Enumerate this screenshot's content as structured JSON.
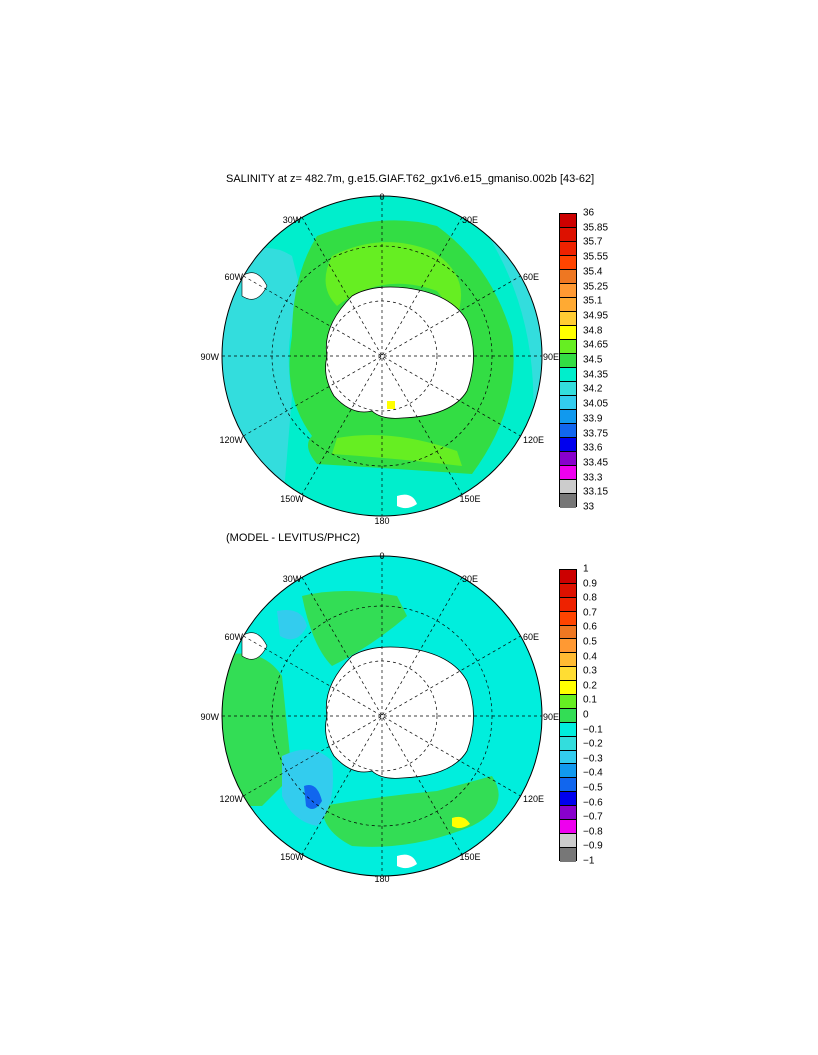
{
  "panel1": {
    "title": "SALINITY at z= 482.7m, g.e15.GIAF.T62_gx1v6.e15_gmaniso.002b [43-62]",
    "lon_labels": {
      "top": "0",
      "tl": "30W",
      "tr": "30E",
      "ul": "60W",
      "ur": "60E",
      "l": "90W",
      "r": "90E",
      "ll": "120W",
      "lr": "120E",
      "bl": "150W",
      "br": "150E",
      "bottom": "180"
    },
    "colorbar": {
      "ticks": [
        "36",
        "35.85",
        "35.7",
        "35.55",
        "35.4",
        "35.25",
        "35.1",
        "34.95",
        "34.8",
        "34.65",
        "34.5",
        "34.35",
        "34.2",
        "34.05",
        "33.9",
        "33.75",
        "33.6",
        "33.45",
        "33.3",
        "33.15",
        "33"
      ],
      "colors": [
        "#cc0000",
        "#dd1100",
        "#ee2200",
        "#ff4400",
        "#ee7722",
        "#ff9933",
        "#ffaa33",
        "#ffcc33",
        "#ffff00",
        "#66ee22",
        "#33dd44",
        "#00eecc",
        "#33dddd",
        "#33ccee",
        "#1199ee",
        "#1166ee",
        "#0000ee",
        "#8800cc",
        "#ee00ee",
        "#cccccc",
        "#777777"
      ]
    }
  },
  "panel2": {
    "title": "(MODEL - LEVITUS/PHC2)",
    "lon_labels": {
      "top": "0",
      "tl": "30W",
      "tr": "30E",
      "ul": "60W",
      "ur": "60E",
      "l": "90W",
      "r": "90E",
      "ll": "120W",
      "lr": "120E",
      "bl": "150W",
      "br": "150E",
      "bottom": "180"
    },
    "colorbar": {
      "ticks": [
        "1",
        "0.9",
        "0.8",
        "0.7",
        "0.6",
        "0.5",
        "0.4",
        "0.3",
        "0.2",
        "0.1",
        "0",
        "−0.1",
        "−0.2",
        "−0.3",
        "−0.4",
        "−0.5",
        "−0.6",
        "−0.7",
        "−0.8",
        "−0.9",
        "−1"
      ],
      "colors": [
        "#cc0000",
        "#dd1100",
        "#ee2200",
        "#ff4400",
        "#ee7722",
        "#ff9933",
        "#ffbb33",
        "#ffdd33",
        "#ffff00",
        "#66ee22",
        "#33dd55",
        "#00eedd",
        "#33dddd",
        "#33ccee",
        "#1199ee",
        "#1166ee",
        "#0000ee",
        "#8800cc",
        "#ee00ee",
        "#cccccc",
        "#777777"
      ]
    }
  }
}
